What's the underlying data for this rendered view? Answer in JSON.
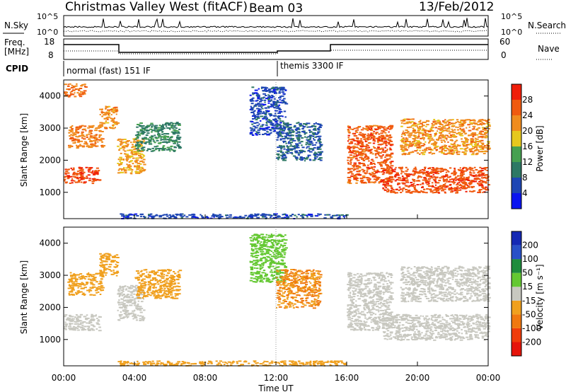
{
  "header": {
    "title": "Christmas Valley West (fitACF)",
    "beam": "Beam 03",
    "date": "13/Feb/2012"
  },
  "strips": {
    "nsky_label": "N.Sky",
    "nsky_ticks": [
      "10^5",
      "10^0"
    ],
    "nsearch_label": "N.Search",
    "nsearch_ticks": [
      "10^5",
      "10^0"
    ],
    "freq_label": "Freq.",
    "freq_unit": "[MHz]",
    "freq_ticks": [
      "18",
      "8"
    ],
    "nave_label": "Nave",
    "nave_ticks": [
      "60",
      "0"
    ],
    "cpid_label": "CPID",
    "cpid_modes": [
      {
        "name": "normal (fast) 151 IF",
        "start_hour": 0
      },
      {
        "name": "themis 3300 IF",
        "start_hour": 12
      }
    ]
  },
  "axes": {
    "ylabel": "Slant Range [km]",
    "xlabel": "Time UT",
    "y_ticks": [
      "1000",
      "2000",
      "3000",
      "4000"
    ],
    "x_ticks": [
      "00:00",
      "04:00",
      "08:00",
      "12:00",
      "16:00",
      "20:00",
      "00:00"
    ]
  },
  "power_scale": {
    "label": "Power [dB]",
    "ticks": [
      "4",
      "8",
      "12",
      "16",
      "20",
      "24",
      "28"
    ],
    "colors": [
      "#0a14f0",
      "#1e46b4",
      "#2d7864",
      "#46a050",
      "#e6c81e",
      "#f08c1e",
      "#f05a0f",
      "#f01e0a"
    ]
  },
  "velocity_scale": {
    "label": "Velocity [m s⁻¹]",
    "ticks": [
      "200",
      "100",
      "50",
      "15",
      "-15",
      "-50",
      "-100",
      "-200"
    ],
    "colors": [
      "#1428b4",
      "#2850c8",
      "#1e8c3c",
      "#64c832",
      "#c8c8c0",
      "#f0a01e",
      "#f0780f",
      "#f03c0a",
      "#e6140a"
    ]
  },
  "chart_data": [
    {
      "type": "heatmap",
      "panel": "power",
      "xlabel": "Time UT",
      "ylabel": "Slant Range [km]",
      "xlim_hours": [
        0,
        24
      ],
      "ylim_km": [
        180,
        4500
      ],
      "colorbar_label": "Power [dB]",
      "regions": [
        {
          "t": [
            0.0,
            2.0
          ],
          "range_km": [
            1300,
            1800
          ],
          "power_db": 27
        },
        {
          "t": [
            0.2,
            2.2
          ],
          "range_km": [
            2400,
            3100
          ],
          "power_db": 23
        },
        {
          "t": [
            0.0,
            1.2
          ],
          "range_km": [
            4000,
            4400
          ],
          "power_db": 24
        },
        {
          "t": [
            2.0,
            3.0
          ],
          "range_km": [
            3000,
            3700
          ],
          "power_db": 22
        },
        {
          "t": [
            3.0,
            4.5
          ],
          "range_km": [
            1600,
            2700
          ],
          "power_db": 21
        },
        {
          "t": [
            4.0,
            6.5
          ],
          "range_km": [
            2300,
            3200
          ],
          "power_db": 11
        },
        {
          "t": [
            10.5,
            12.5
          ],
          "range_km": [
            2800,
            4300
          ],
          "power_db": 6
        },
        {
          "t": [
            12.0,
            14.5
          ],
          "range_km": [
            2000,
            3200
          ],
          "power_db": 8
        },
        {
          "t": [
            16.0,
            18.5
          ],
          "range_km": [
            1300,
            3100
          ],
          "power_db": 26
        },
        {
          "t": [
            18.0,
            24.0
          ],
          "range_km": [
            1000,
            1800
          ],
          "power_db": 27
        },
        {
          "t": [
            19.0,
            24.0
          ],
          "range_km": [
            2200,
            3300
          ],
          "power_db": 22
        },
        {
          "t": [
            3.0,
            16.0
          ],
          "range_km": [
            200,
            350
          ],
          "power_db": 6
        }
      ]
    },
    {
      "type": "heatmap",
      "panel": "velocity",
      "xlabel": "Time UT",
      "ylabel": "Slant Range [km]",
      "xlim_hours": [
        0,
        24
      ],
      "ylim_km": [
        180,
        4500
      ],
      "colorbar_label": "Velocity [m s⁻¹]",
      "regions": [
        {
          "t": [
            0.0,
            2.0
          ],
          "range_km": [
            1300,
            1800
          ],
          "velocity": 0
        },
        {
          "t": [
            0.2,
            2.2
          ],
          "range_km": [
            2400,
            3100
          ],
          "velocity": -20
        },
        {
          "t": [
            2.0,
            3.0
          ],
          "range_km": [
            3000,
            3700
          ],
          "velocity": -40
        },
        {
          "t": [
            3.0,
            4.5
          ],
          "range_km": [
            1600,
            2700
          ],
          "velocity": -10
        },
        {
          "t": [
            4.0,
            6.5
          ],
          "range_km": [
            2300,
            3200
          ],
          "velocity": -40
        },
        {
          "t": [
            10.5,
            12.5
          ],
          "range_km": [
            2800,
            4300
          ],
          "velocity": 30
        },
        {
          "t": [
            12.0,
            14.5
          ],
          "range_km": [
            2000,
            3200
          ],
          "velocity": -50
        },
        {
          "t": [
            16.0,
            18.5
          ],
          "range_km": [
            1300,
            3100
          ],
          "velocity": 0
        },
        {
          "t": [
            18.0,
            24.0
          ],
          "range_km": [
            1000,
            1800
          ],
          "velocity": 0
        },
        {
          "t": [
            19.0,
            24.0
          ],
          "range_km": [
            2200,
            3300
          ],
          "velocity": 0
        },
        {
          "t": [
            3.0,
            16.0
          ],
          "range_km": [
            200,
            350
          ],
          "velocity": -40
        }
      ]
    }
  ]
}
